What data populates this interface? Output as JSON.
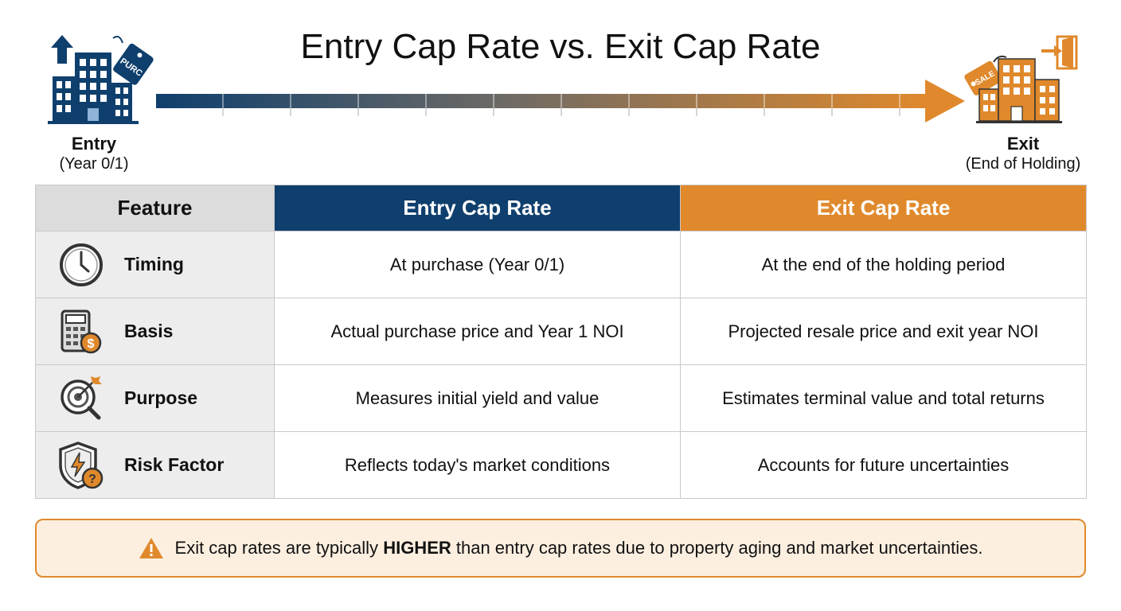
{
  "title": "Entry Cap Rate vs. Exit Cap Rate",
  "entry": {
    "label": "Entry",
    "sublabel": "(Year 0/1)",
    "tag_text": "PURC",
    "color": "#0f3f6d"
  },
  "exit": {
    "label": "Exit",
    "sublabel": "(End of Holding)",
    "tag_text": "SALE",
    "color": "#e0892c"
  },
  "table": {
    "headers": {
      "feature": "Feature",
      "entry": "Entry Cap Rate",
      "exit": "Exit Cap Rate"
    },
    "rows": [
      {
        "icon": "clock-icon",
        "feature": "Timing",
        "entry": "At purchase (Year 0/1)",
        "exit": "At the end of the holding period"
      },
      {
        "icon": "calculator-icon",
        "feature": "Basis",
        "entry": "Actual purchase price and Year 1 NOI",
        "exit": "Projected resale price and exit year NOI"
      },
      {
        "icon": "target-icon",
        "feature": "Purpose",
        "entry": "Measures initial yield and value",
        "exit": "Estimates terminal value and total returns"
      },
      {
        "icon": "shield-risk-icon",
        "feature": "Risk Factor",
        "entry": "Reflects today's market conditions",
        "exit": "Accounts for future uncertainties"
      }
    ]
  },
  "note": {
    "icon": "warning-icon",
    "before": "Exit cap rates are typically ",
    "emphasis": "HIGHER",
    "after": " than entry cap rates due to property aging and market uncertainties."
  }
}
